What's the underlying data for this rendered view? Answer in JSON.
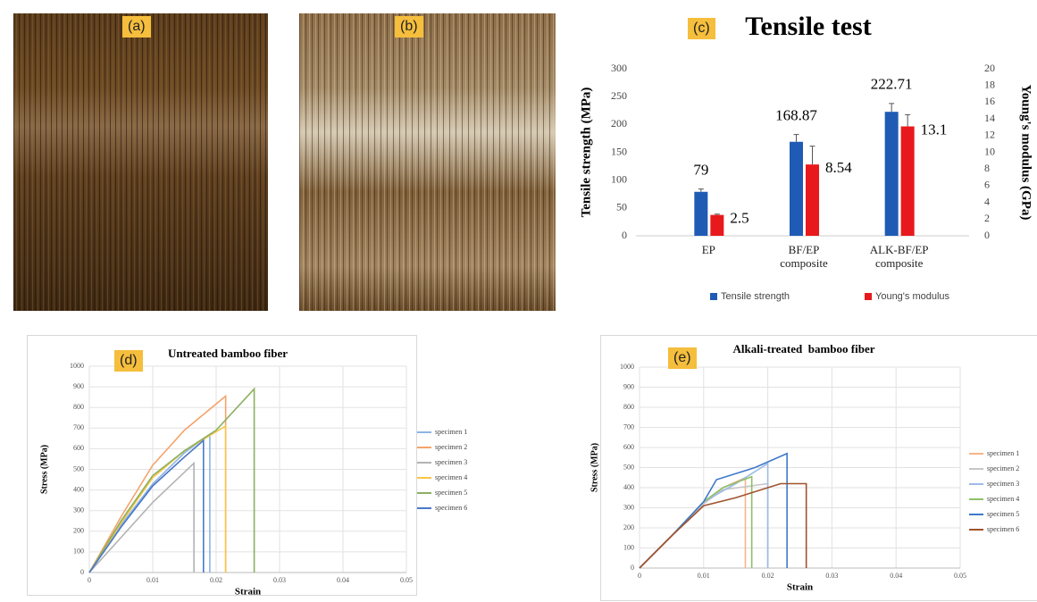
{
  "panel_labels": [
    "(a)",
    "(b)",
    "(c)",
    "(d)",
    "(e)"
  ],
  "chart_data": [
    {
      "type": "bar",
      "title": "Tensile test",
      "categories": [
        "EP",
        "BF/EP composite",
        "ALK-BF/EP composite"
      ],
      "ylabel": "Tensile strength (MPa)",
      "y2label": "Young's modulus (GPa)",
      "ylim": [
        0,
        300
      ],
      "yticks": [
        0,
        50,
        100,
        150,
        200,
        250,
        300
      ],
      "y2lim": [
        0,
        20
      ],
      "y2ticks": [
        0,
        2,
        4,
        6,
        8,
        10,
        12,
        14,
        16,
        18,
        20
      ],
      "series": [
        {
          "name": "Tensile strength",
          "color": "#1f5bb5",
          "values": [
            79,
            168.87,
            222.71
          ],
          "errors": [
            5,
            13,
            15
          ]
        },
        {
          "name": "Young's modulus",
          "color": "#e8191c",
          "axis": "y2",
          "values": [
            2.5,
            8.54,
            13.1
          ],
          "errors": [
            0.1,
            2.2,
            1.4
          ]
        }
      ],
      "grid": false,
      "legend": "bottom"
    },
    {
      "type": "line",
      "title": "Untreated bamboo fiber",
      "xlabel": "Strain",
      "ylabel": "Stress (MPa)",
      "xlim": [
        0,
        0.05
      ],
      "xticks": [
        0,
        0.01,
        0.02,
        0.03,
        0.04,
        0.05
      ],
      "ylim": [
        0,
        1000
      ],
      "yticks": [
        0,
        100,
        200,
        300,
        400,
        500,
        600,
        700,
        800,
        900,
        1000
      ],
      "grid": true,
      "legend": "right",
      "series": [
        {
          "name": "specimen 1",
          "color": "#8fb4e3",
          "x": [
            0,
            0.005,
            0.01,
            0.015,
            0.019,
            0.019
          ],
          "values": [
            0,
            230,
            430,
            580,
            670,
            0
          ]
        },
        {
          "name": "specimen 2",
          "color": "#f4a46a",
          "x": [
            0,
            0.005,
            0.01,
            0.015,
            0.0215,
            0.0215
          ],
          "values": [
            0,
            270,
            520,
            690,
            855,
            0
          ]
        },
        {
          "name": "specimen 3",
          "color": "#b3b3b3",
          "x": [
            0,
            0.005,
            0.01,
            0.0165,
            0.0165
          ],
          "values": [
            0,
            170,
            340,
            530,
            0
          ]
        },
        {
          "name": "specimen 4",
          "color": "#f7c646",
          "x": [
            0,
            0.005,
            0.01,
            0.015,
            0.0215,
            0.0215
          ],
          "values": [
            0,
            240,
            460,
            590,
            710,
            0
          ]
        },
        {
          "name": "specimen 5",
          "color": "#8db060",
          "x": [
            0,
            0.005,
            0.01,
            0.015,
            0.02,
            0.026,
            0.026
          ],
          "values": [
            0,
            250,
            470,
            590,
            690,
            890,
            0
          ]
        },
        {
          "name": "specimen 6",
          "color": "#4a78c8",
          "x": [
            0,
            0.005,
            0.01,
            0.015,
            0.018,
            0.018
          ],
          "values": [
            0,
            220,
            420,
            560,
            640,
            0
          ]
        }
      ]
    },
    {
      "type": "line",
      "title": "Alkali-treated  bamboo fiber",
      "xlabel": "Strain",
      "ylabel": "Stress (MPa)",
      "xlim": [
        0,
        0.05
      ],
      "xticks": [
        0,
        0.01,
        0.02,
        0.03,
        0.04,
        0.05
      ],
      "ylim": [
        0,
        1000
      ],
      "yticks": [
        0,
        100,
        200,
        300,
        400,
        500,
        600,
        700,
        800,
        900,
        1000
      ],
      "grid": true,
      "legend": "right",
      "series": [
        {
          "name": "specimen 1",
          "color": "#f7b48a",
          "x": [
            0,
            0.005,
            0.01,
            0.013,
            0.0165,
            0.0165
          ],
          "values": [
            0,
            160,
            320,
            400,
            450,
            0
          ]
        },
        {
          "name": "specimen 2",
          "color": "#c6c6c6",
          "x": [
            0,
            0.005,
            0.01,
            0.013,
            0.02,
            0.02
          ],
          "values": [
            0,
            160,
            320,
            390,
            420,
            0
          ]
        },
        {
          "name": "specimen 3",
          "color": "#9dbbe6",
          "x": [
            0,
            0.005,
            0.01,
            0.015,
            0.02,
            0.02
          ],
          "values": [
            0,
            160,
            330,
            420,
            520,
            0
          ]
        },
        {
          "name": "specimen 4",
          "color": "#8fc06a",
          "x": [
            0,
            0.005,
            0.01,
            0.013,
            0.0175,
            0.0175
          ],
          "values": [
            0,
            160,
            330,
            400,
            455,
            0
          ]
        },
        {
          "name": "specimen 5",
          "color": "#3f78c9",
          "x": [
            0,
            0.005,
            0.01,
            0.012,
            0.018,
            0.023,
            0.023
          ],
          "values": [
            0,
            160,
            330,
            440,
            500,
            570,
            0
          ]
        },
        {
          "name": "specimen 6",
          "color": "#a0522d",
          "x": [
            0,
            0.005,
            0.01,
            0.015,
            0.022,
            0.026,
            0.026
          ],
          "values": [
            0,
            160,
            310,
            350,
            420,
            420,
            0
          ]
        }
      ]
    }
  ]
}
